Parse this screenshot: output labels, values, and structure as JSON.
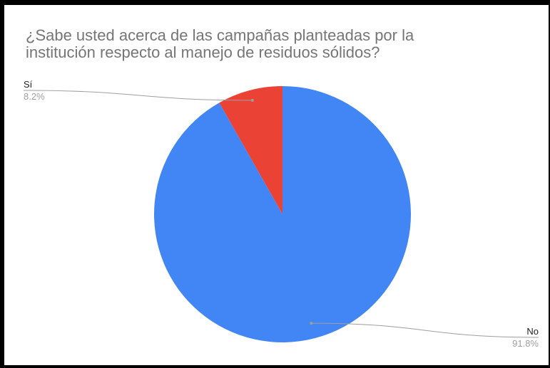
{
  "title_lines": [
    "¿Sabe usted acerca de las campañas planteadas por la",
    "institución respecto al manejo de residuos sólidos?"
  ],
  "chart_data": {
    "type": "pie",
    "title": "¿Sabe usted acerca de las campañas planteadas por la institución respecto al manejo de residuos sólidos?",
    "slices": [
      {
        "label": "Sí",
        "value": 8.2,
        "value_label": "8.2%",
        "color": "#ea4335"
      },
      {
        "label": "No",
        "value": 91.8,
        "value_label": "91.8%",
        "color": "#4285f4"
      }
    ],
    "start_angle": "12 o'clock, clockwise",
    "legend": "none",
    "label_placement": [
      "left",
      "right"
    ]
  }
}
